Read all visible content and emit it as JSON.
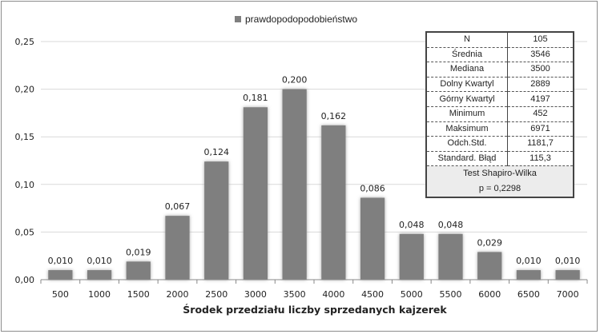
{
  "chart_data": {
    "type": "bar",
    "categories": [
      "500",
      "1000",
      "1500",
      "2000",
      "2500",
      "3000",
      "3500",
      "4000",
      "4500",
      "5000",
      "5500",
      "6000",
      "6500",
      "7000"
    ],
    "series": [
      {
        "name": "prawdopodopodobieństwo",
        "values": [
          0.01,
          0.01,
          0.019,
          0.067,
          0.124,
          0.181,
          0.2,
          0.162,
          0.086,
          0.048,
          0.048,
          0.029,
          0.01,
          0.01
        ]
      }
    ],
    "data_labels": [
      "0,010",
      "0,010",
      "0,019",
      "0,067",
      "0,124",
      "0,181",
      "0,200",
      "0,162",
      "0,086",
      "0,048",
      "0,048",
      "0,029",
      "0,010",
      "0,010"
    ],
    "xlabel": "Środek przedziału liczby sprzedanych kajzerek",
    "ylabel": "",
    "ylim": [
      0,
      0.25
    ],
    "yticks": [
      "0,00",
      "0,05",
      "0,10",
      "0,15",
      "0,20",
      "0,25"
    ],
    "grid": true,
    "legend_position": "top-center",
    "bar_color": "#7f7f7f",
    "grid_color": "#d9d9d9"
  },
  "stats_table": {
    "rows": [
      {
        "label": "N",
        "value": "105"
      },
      {
        "label": "Średnia",
        "value": "3546"
      },
      {
        "label": "Mediana",
        "value": "3500"
      },
      {
        "label": "Dolny Kwartyl",
        "value": "2889"
      },
      {
        "label": "Górny Kwartyl",
        "value": "4197"
      },
      {
        "label": "Minimum",
        "value": "452"
      },
      {
        "label": "Maksimum",
        "value": "6971"
      },
      {
        "label": "Odch.Std.",
        "value": "1181,7"
      },
      {
        "label": "Standard. Błąd",
        "value": "115,3"
      }
    ],
    "test_title": "Test Shapiro-Wilka",
    "test_result": "p = 0,2298"
  }
}
